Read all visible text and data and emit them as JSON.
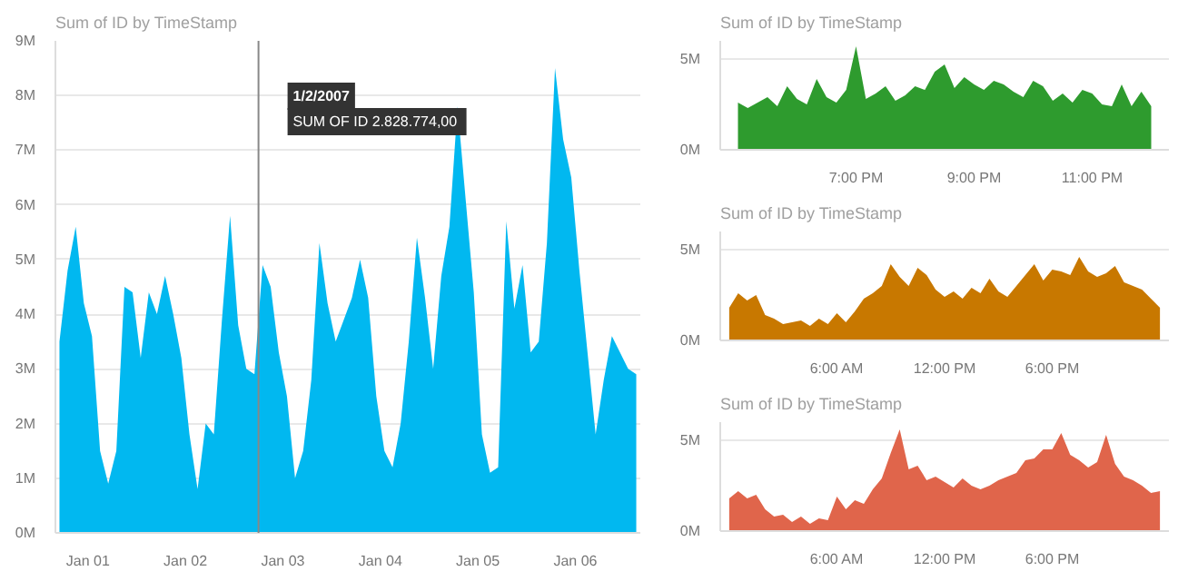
{
  "chart_data": [
    {
      "type": "area",
      "title": "Sum of ID by TimeStamp",
      "grid": "y",
      "x": [
        "2006-12-31T17:00",
        "2006-12-31T19:00",
        "2006-12-31T21:00",
        "2006-12-31T23:00",
        "2007-01-01T01:00",
        "2007-01-01T03:00",
        "2007-01-01T05:00",
        "2007-01-01T07:00",
        "2007-01-01T09:00",
        "2007-01-01T11:00",
        "2007-01-01T13:00",
        "2007-01-01T15:00",
        "2007-01-01T17:00",
        "2007-01-01T19:00",
        "2007-01-01T21:00",
        "2007-01-01T23:00",
        "2007-01-02T01:00",
        "2007-01-02T03:00",
        "2007-01-02T05:00",
        "2007-01-02T07:00",
        "2007-01-02T09:00",
        "2007-01-02T11:00",
        "2007-01-02T13:00",
        "2007-01-02T15:00",
        "2007-01-02T17:00",
        "2007-01-02T19:00",
        "2007-01-02T21:00",
        "2007-01-02T23:00",
        "2007-01-03T01:00",
        "2007-01-03T03:00",
        "2007-01-03T05:00",
        "2007-01-03T07:00",
        "2007-01-03T09:00",
        "2007-01-03T11:00",
        "2007-01-03T13:00",
        "2007-01-03T15:00",
        "2007-01-03T17:00",
        "2007-01-03T19:00",
        "2007-01-03T21:00",
        "2007-01-03T23:00",
        "2007-01-04T01:00",
        "2007-01-04T03:00",
        "2007-01-04T05:00",
        "2007-01-04T07:00",
        "2007-01-04T09:00",
        "2007-01-04T11:00",
        "2007-01-04T13:00",
        "2007-01-04T15:00",
        "2007-01-04T17:00",
        "2007-01-04T19:00",
        "2007-01-04T21:00",
        "2007-01-04T23:00",
        "2007-01-05T01:00",
        "2007-01-05T03:00",
        "2007-01-05T05:00",
        "2007-01-05T07:00",
        "2007-01-05T09:00",
        "2007-01-05T11:00",
        "2007-01-05T13:00",
        "2007-01-05T15:00",
        "2007-01-05T17:00",
        "2007-01-05T19:00",
        "2007-01-05T21:00",
        "2007-01-05T23:00",
        "2007-01-06T01:00",
        "2007-01-06T03:00",
        "2007-01-06T05:00",
        "2007-01-06T07:00",
        "2007-01-06T09:00",
        "2007-01-06T11:00",
        "2007-01-06T13:00",
        "2007-01-06T15:00"
      ],
      "series": [
        {
          "color": "#01b8f0",
          "values": [
            3.5,
            4.8,
            5.6,
            4.2,
            3.6,
            1.5,
            0.9,
            1.5,
            4.5,
            4.4,
            3.2,
            4.4,
            4.0,
            4.7,
            4.0,
            3.2,
            1.8,
            0.8,
            2.0,
            1.8,
            3.9,
            5.8,
            3.8,
            3.0,
            2.9,
            4.9,
            4.5,
            3.3,
            2.5,
            1.0,
            1.5,
            2.8,
            5.3,
            4.2,
            3.5,
            3.9,
            4.3,
            5.0,
            4.3,
            2.5,
            1.5,
            1.2,
            2.0,
            3.5,
            5.4,
            4.3,
            3.0,
            4.7,
            5.6,
            7.8,
            6.1,
            4.4,
            1.8,
            1.1,
            1.2,
            5.7,
            4.1,
            4.9,
            3.3,
            3.5,
            5.3,
            8.5,
            7.2,
            6.5,
            4.8,
            3.3,
            1.8,
            2.8,
            3.6,
            3.3,
            3.0,
            2.9
          ]
        }
      ],
      "xlim": [
        "2006-12-31T16:00",
        "2007-01-06T16:00"
      ],
      "xticks": [
        {
          "value": "2007-01-01",
          "label": "Jan 01"
        },
        {
          "value": "2007-01-02",
          "label": "Jan 02"
        },
        {
          "value": "2007-01-03",
          "label": "Jan 03"
        },
        {
          "value": "2007-01-04",
          "label": "Jan 04"
        },
        {
          "value": "2007-01-05",
          "label": "Jan 05"
        },
        {
          "value": "2007-01-06",
          "label": "Jan 06"
        }
      ],
      "ylim": [
        0,
        9
      ],
      "yticks": [
        {
          "value": 0,
          "label": "0M"
        },
        {
          "value": 1,
          "label": "1M"
        },
        {
          "value": 2,
          "label": "2M"
        },
        {
          "value": 3,
          "label": "3M"
        },
        {
          "value": 4,
          "label": "4M"
        },
        {
          "value": 5,
          "label": "5M"
        },
        {
          "value": 6,
          "label": "6M"
        },
        {
          "value": 7,
          "label": "7M"
        },
        {
          "value": 8,
          "label": "8M"
        },
        {
          "value": 9,
          "label": "9M"
        }
      ],
      "ref_lines": [
        {
          "axis": "x",
          "value": "2007-01-02T18:00",
          "color": "#888888"
        }
      ],
      "annotations": [
        "1/2/2007",
        "SUM OF ID  2.828.774,00"
      ]
    },
    {
      "type": "area",
      "title": "Sum of ID by TimeStamp",
      "grid": "y",
      "x": [
        17,
        17.1667,
        17.3333,
        17.5,
        17.6667,
        17.8333,
        18,
        18.1667,
        18.3333,
        18.5,
        18.6667,
        18.8333,
        19,
        19.1667,
        19.3333,
        19.5,
        19.6667,
        19.8333,
        20,
        20.1667,
        20.3333,
        20.5,
        20.6667,
        20.8333,
        21,
        21.1667,
        21.3333,
        21.5,
        21.6667,
        21.8333,
        22,
        22.1667,
        22.3333,
        22.5,
        22.6667,
        22.8333,
        23,
        23.1667,
        23.3333,
        23.5,
        23.6667,
        23.8333,
        24
      ],
      "series": [
        {
          "color": "#2e9b2e",
          "values": [
            2.6,
            2.3,
            2.6,
            2.9,
            2.4,
            3.5,
            2.8,
            2.5,
            3.9,
            2.9,
            2.6,
            3.3,
            5.7,
            2.8,
            3.1,
            3.5,
            2.7,
            3.0,
            3.5,
            3.3,
            4.3,
            4.7,
            3.4,
            4.0,
            3.6,
            3.3,
            3.8,
            3.6,
            3.2,
            2.9,
            3.8,
            3.5,
            2.7,
            3.1,
            2.6,
            3.3,
            3.1,
            2.5,
            2.4,
            3.6,
            2.4,
            3.2,
            2.4
          ]
        }
      ],
      "xlim": [
        16.7,
        24.3
      ],
      "xticks": [
        {
          "value": 19,
          "label": "7:00 PM"
        },
        {
          "value": 21,
          "label": "9:00 PM"
        },
        {
          "value": 23,
          "label": "11:00 PM"
        }
      ],
      "ylim": [
        0,
        6
      ],
      "yticks": [
        {
          "value": 0,
          "label": "0M"
        },
        {
          "value": 5,
          "label": "5M"
        }
      ]
    },
    {
      "type": "area",
      "title": "Sum of ID by TimeStamp",
      "grid": "y",
      "x": [
        0,
        0.5,
        1,
        1.5,
        2,
        2.5,
        3,
        3.5,
        4,
        4.5,
        5,
        5.5,
        6,
        6.5,
        7,
        7.5,
        8,
        8.5,
        9,
        9.5,
        10,
        10.5,
        11,
        11.5,
        12,
        12.5,
        13,
        13.5,
        14,
        14.5,
        15,
        15.5,
        16,
        16.5,
        17,
        17.5,
        18,
        18.5,
        19,
        19.5,
        20,
        20.5,
        21,
        21.5,
        22,
        22.5,
        23,
        23.5,
        24
      ],
      "series": [
        {
          "color": "#c87800",
          "values": [
            1.8,
            2.6,
            2.2,
            2.5,
            1.4,
            1.2,
            0.9,
            1.0,
            1.1,
            0.8,
            1.2,
            0.9,
            1.5,
            1.0,
            1.6,
            2.3,
            2.6,
            3.0,
            4.2,
            3.5,
            3.0,
            4.0,
            3.6,
            2.8,
            2.4,
            2.7,
            2.3,
            2.9,
            2.6,
            3.4,
            2.7,
            2.4,
            3.0,
            3.6,
            4.2,
            3.3,
            3.9,
            3.8,
            3.6,
            4.6,
            3.8,
            3.5,
            3.7,
            4.1,
            3.2,
            3.0,
            2.8,
            2.3,
            1.8
          ]
        }
      ],
      "xlim": [
        -0.5,
        24.5
      ],
      "xticks": [
        {
          "value": 6,
          "label": "6:00 AM"
        },
        {
          "value": 12,
          "label": "12:00 PM"
        },
        {
          "value": 18,
          "label": "6:00 PM"
        }
      ],
      "ylim": [
        0,
        6
      ],
      "yticks": [
        {
          "value": 0,
          "label": "0M"
        },
        {
          "value": 5,
          "label": "5M"
        }
      ]
    },
    {
      "type": "area",
      "title": "Sum of ID by TimeStamp",
      "grid": "y",
      "x": [
        0,
        0.5,
        1,
        1.5,
        2,
        2.5,
        3,
        3.5,
        4,
        4.5,
        5,
        5.5,
        6,
        6.5,
        7,
        7.5,
        8,
        8.5,
        9,
        9.5,
        10,
        10.5,
        11,
        11.5,
        12,
        12.5,
        13,
        13.5,
        14,
        14.5,
        15,
        15.5,
        16,
        16.5,
        17,
        17.5,
        18,
        18.5,
        19,
        19.5,
        20,
        20.5,
        21,
        21.5,
        22,
        22.5,
        23,
        23.5,
        24
      ],
      "series": [
        {
          "color": "#e0654b",
          "values": [
            1.8,
            2.2,
            1.8,
            2.0,
            1.2,
            0.8,
            0.9,
            0.5,
            0.8,
            0.4,
            0.7,
            0.6,
            1.9,
            1.2,
            1.7,
            1.5,
            2.3,
            2.9,
            4.3,
            5.6,
            3.4,
            3.6,
            2.8,
            3.0,
            2.7,
            2.4,
            2.9,
            2.5,
            2.3,
            2.5,
            2.8,
            3.0,
            3.2,
            3.9,
            4.0,
            4.5,
            4.5,
            5.4,
            4.2,
            3.9,
            3.5,
            3.8,
            5.3,
            3.7,
            3.0,
            2.8,
            2.5,
            2.1,
            2.2
          ]
        }
      ],
      "xlim": [
        -0.5,
        24.5
      ],
      "xticks": [
        {
          "value": 6,
          "label": "6:00 AM"
        },
        {
          "value": 12,
          "label": "12:00 PM"
        },
        {
          "value": 18,
          "label": "6:00 PM"
        }
      ],
      "ylim": [
        0,
        6
      ],
      "yticks": [
        {
          "value": 0,
          "label": "0M"
        },
        {
          "value": 5,
          "label": "5M"
        }
      ]
    }
  ]
}
